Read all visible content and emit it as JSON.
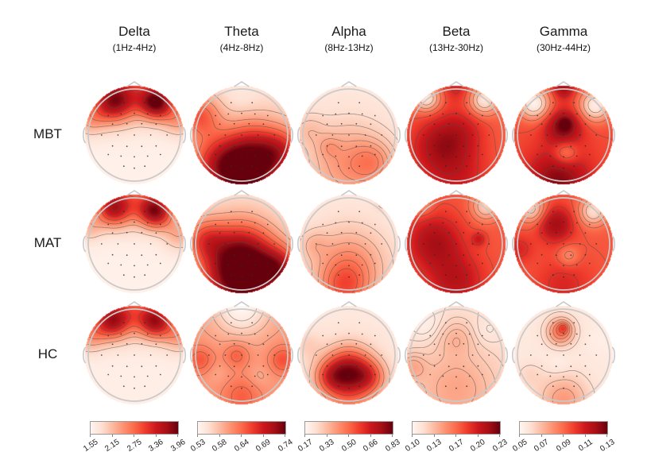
{
  "chart_data": {
    "type": "heatmap",
    "subtype": "eeg_topographic_map_grid",
    "colormap": "Reds",
    "colormap_colors": [
      "#fff5f0",
      "#fee0d2",
      "#fcbba1",
      "#fc9272",
      "#fb6a4a",
      "#ef3b2c",
      "#cb181d",
      "#a50f15",
      "#67000d"
    ],
    "head_outline_color": "#c9c9c9",
    "contour_color": "#4d4d4d",
    "rows": [
      {
        "label": "MBT"
      },
      {
        "label": "MAT"
      },
      {
        "label": "HC"
      }
    ],
    "bands": [
      {
        "label": "Delta",
        "range": "(1Hz-4Hz)",
        "colorbar_ticks": [
          "1.55",
          "2.15",
          "2.75",
          "3.36",
          "3.96"
        ],
        "vmin": 1.55,
        "vmax": 3.96
      },
      {
        "label": "Theta",
        "range": "(4Hz-8Hz)",
        "colorbar_ticks": [
          "0.53",
          "0.58",
          "0.64",
          "0.69",
          "0.74"
        ],
        "vmin": 0.53,
        "vmax": 0.74
      },
      {
        "label": "Alpha",
        "range": "(8Hz-13Hz)",
        "colorbar_ticks": [
          "0.17",
          "0.33",
          "0.50",
          "0.66",
          "0.83"
        ],
        "vmin": 0.17,
        "vmax": 0.83
      },
      {
        "label": "Beta",
        "range": "(13Hz-30Hz)",
        "colorbar_ticks": [
          "0.10",
          "0.13",
          "0.17",
          "0.20",
          "0.23"
        ],
        "vmin": 0.1,
        "vmax": 0.23
      },
      {
        "label": "Gamma",
        "range": "(30Hz-44Hz)",
        "colorbar_ticks": [
          "0.05",
          "0.07",
          "0.09",
          "0.11",
          "0.13"
        ],
        "vmin": 0.05,
        "vmax": 0.13
      }
    ],
    "maps": [
      {
        "group": "MBT",
        "band": "Delta",
        "pattern": "bilateral frontal maxima, posterior minimum",
        "field": {
          "base": 0.03,
          "blobs": [
            {
              "x": 0.28,
              "y": 0.16,
              "s": 0.15,
              "a": 0.72
            },
            {
              "x": 0.73,
              "y": 0.17,
              "s": 0.12,
              "a": 0.82
            },
            {
              "x": 0.5,
              "y": 0.02,
              "s": 0.22,
              "a": 0.4
            },
            {
              "x": 0.04,
              "y": 0.34,
              "s": 0.12,
              "a": 0.26
            },
            {
              "x": 0.96,
              "y": 0.34,
              "s": 0.12,
              "a": 0.3
            }
          ]
        }
      },
      {
        "group": "MBT",
        "band": "Theta",
        "pattern": "occipital maximum, light frontal midline",
        "field": {
          "base": 0.13,
          "blobs": [
            {
              "x": 0.55,
              "y": 0.9,
              "s": 0.22,
              "a": 0.85
            },
            {
              "x": 0.25,
              "y": 0.78,
              "s": 0.22,
              "a": 0.45
            },
            {
              "x": 0.9,
              "y": 0.68,
              "s": 0.18,
              "a": 0.5
            },
            {
              "x": 0.07,
              "y": 0.3,
              "s": 0.15,
              "a": 0.4
            },
            {
              "x": 0.6,
              "y": 0.55,
              "s": 0.2,
              "a": 0.28
            },
            {
              "x": 0.5,
              "y": 0.1,
              "s": 0.15,
              "a": -0.06
            }
          ]
        }
      },
      {
        "group": "MBT",
        "band": "Alpha",
        "pattern": "mild posterior increase, light frontal half",
        "field": {
          "base": 0.07,
          "blobs": [
            {
              "x": 0.5,
              "y": 0.8,
              "s": 0.3,
              "a": 0.3
            },
            {
              "x": 0.75,
              "y": 0.78,
              "s": 0.15,
              "a": 0.18
            },
            {
              "x": 0.3,
              "y": 0.62,
              "s": 0.08,
              "a": 0.1
            },
            {
              "x": 0.08,
              "y": 0.45,
              "s": 0.12,
              "a": 0.12
            }
          ]
        }
      },
      {
        "group": "MBT",
        "band": "Beta",
        "pattern": "broad central-posterior elevation, bilateral frontal pole minima",
        "field": {
          "base": 0.52,
          "blobs": [
            {
              "x": 0.2,
              "y": 0.13,
              "s": 0.09,
              "a": -0.44
            },
            {
              "x": 0.78,
              "y": 0.15,
              "s": 0.1,
              "a": -0.44
            },
            {
              "x": 0.3,
              "y": 0.6,
              "s": 0.2,
              "a": 0.25
            },
            {
              "x": 0.55,
              "y": 0.45,
              "s": 0.18,
              "a": 0.18
            },
            {
              "x": 0.5,
              "y": 0.92,
              "s": 0.25,
              "a": 0.22
            },
            {
              "x": 0.5,
              "y": 0.02,
              "s": 0.1,
              "a": 0.18
            }
          ]
        }
      },
      {
        "group": "MBT",
        "band": "Gamma",
        "pattern": "central and occipital maxima, bilateral frontal minima",
        "field": {
          "base": 0.58,
          "blobs": [
            {
              "x": 0.5,
              "y": 0.42,
              "s": 0.13,
              "a": 0.36
            },
            {
              "x": 0.52,
              "y": 0.38,
              "s": 0.05,
              "a": 0.15
            },
            {
              "x": 0.2,
              "y": 0.18,
              "s": 0.11,
              "a": -0.56
            },
            {
              "x": 0.82,
              "y": 0.2,
              "s": 0.11,
              "a": -0.53
            },
            {
              "x": 0.45,
              "y": 0.95,
              "s": 0.22,
              "a": 0.36
            },
            {
              "x": 0.52,
              "y": 0.68,
              "s": 0.09,
              "a": -0.27
            },
            {
              "x": 0.5,
              "y": 0.02,
              "s": 0.08,
              "a": 0.28
            }
          ]
        }
      },
      {
        "group": "MAT",
        "band": "Delta",
        "pattern": "bilateral frontal maxima, posterior minimum",
        "field": {
          "base": 0.03,
          "blobs": [
            {
              "x": 0.28,
              "y": 0.14,
              "s": 0.13,
              "a": 0.66
            },
            {
              "x": 0.72,
              "y": 0.17,
              "s": 0.12,
              "a": 0.78
            },
            {
              "x": 0.5,
              "y": 0.02,
              "s": 0.2,
              "a": 0.36
            },
            {
              "x": 0.96,
              "y": 0.4,
              "s": 0.12,
              "a": 0.26
            },
            {
              "x": 0.04,
              "y": 0.34,
              "s": 0.1,
              "a": 0.2
            }
          ]
        }
      },
      {
        "group": "MAT",
        "band": "Theta",
        "pattern": "strong parieto-occipital maximum, frontal minimum",
        "field": {
          "base": 0.1,
          "blobs": [
            {
              "x": 0.5,
              "y": 0.85,
              "s": 0.28,
              "a": 0.9
            },
            {
              "x": 0.5,
              "y": 0.55,
              "s": 0.25,
              "a": 0.4
            },
            {
              "x": 0.12,
              "y": 0.45,
              "s": 0.15,
              "a": 0.35
            },
            {
              "x": 0.9,
              "y": 0.75,
              "s": 0.15,
              "a": 0.45
            }
          ]
        }
      },
      {
        "group": "MAT",
        "band": "Alpha",
        "pattern": "posterior increase, light frontal half",
        "field": {
          "base": 0.07,
          "blobs": [
            {
              "x": 0.5,
              "y": 0.72,
              "s": 0.28,
              "a": 0.33
            },
            {
              "x": 0.45,
              "y": 0.97,
              "s": 0.18,
              "a": 0.3
            },
            {
              "x": 0.85,
              "y": 0.08,
              "s": 0.06,
              "a": 0.12
            },
            {
              "x": 0.14,
              "y": 0.5,
              "s": 0.1,
              "a": 0.12
            }
          ]
        }
      },
      {
        "group": "MAT",
        "band": "Beta",
        "pattern": "broad elevation, left-central maximum, right-frontal minimum",
        "field": {
          "base": 0.55,
          "blobs": [
            {
              "x": 0.28,
              "y": 0.48,
              "s": 0.2,
              "a": 0.3
            },
            {
              "x": 0.5,
              "y": 0.88,
              "s": 0.2,
              "a": 0.25
            },
            {
              "x": 0.8,
              "y": 0.12,
              "s": 0.1,
              "a": -0.36
            },
            {
              "x": 0.15,
              "y": 0.1,
              "s": 0.08,
              "a": -0.2
            },
            {
              "x": 0.73,
              "y": 0.45,
              "s": 0.05,
              "a": 0.18
            }
          ]
        }
      },
      {
        "group": "MAT",
        "band": "Gamma",
        "pattern": "left fronto-central maximum, bilateral frontal minima",
        "field": {
          "base": 0.55,
          "blobs": [
            {
              "x": 0.42,
              "y": 0.3,
              "s": 0.13,
              "a": 0.33
            },
            {
              "x": 0.18,
              "y": 0.15,
              "s": 0.1,
              "a": -0.38
            },
            {
              "x": 0.8,
              "y": 0.17,
              "s": 0.1,
              "a": -0.42
            },
            {
              "x": 0.55,
              "y": 0.62,
              "s": 0.08,
              "a": -0.18
            },
            {
              "x": 0.5,
              "y": 0.92,
              "s": 0.2,
              "a": 0.15
            },
            {
              "x": 0.05,
              "y": 0.55,
              "s": 0.1,
              "a": 0.15
            }
          ]
        }
      },
      {
        "group": "HC",
        "band": "Delta",
        "pattern": "bilateral frontal maxima, posterior minimum",
        "field": {
          "base": 0.04,
          "blobs": [
            {
              "x": 0.27,
              "y": 0.15,
              "s": 0.13,
              "a": 0.68
            },
            {
              "x": 0.72,
              "y": 0.16,
              "s": 0.12,
              "a": 0.68
            },
            {
              "x": 0.5,
              "y": 0.02,
              "s": 0.2,
              "a": 0.38
            },
            {
              "x": 0.04,
              "y": 0.3,
              "s": 0.12,
              "a": 0.3
            },
            {
              "x": 0.96,
              "y": 0.3,
              "s": 0.12,
              "a": 0.3
            }
          ]
        }
      },
      {
        "group": "HC",
        "band": "Theta",
        "pattern": "diffuse mid/posterior moderate values, frontal minimum",
        "field": {
          "base": 0.35,
          "blobs": [
            {
              "x": 0.5,
              "y": 0.0,
              "s": 0.2,
              "a": -0.36
            },
            {
              "x": 0.08,
              "y": 0.55,
              "s": 0.1,
              "a": 0.2
            },
            {
              "x": 0.45,
              "y": 0.5,
              "s": 0.09,
              "a": 0.18
            },
            {
              "x": 0.92,
              "y": 0.55,
              "s": 0.1,
              "a": 0.22
            },
            {
              "x": 0.5,
              "y": 0.92,
              "s": 0.14,
              "a": 0.18
            },
            {
              "x": 0.25,
              "y": 0.68,
              "s": 0.08,
              "a": -0.05
            },
            {
              "x": 0.68,
              "y": 0.72,
              "s": 0.08,
              "a": -0.06
            }
          ]
        }
      },
      {
        "group": "HC",
        "band": "Alpha",
        "pattern": "strong centro-parietal maximum",
        "field": {
          "base": 0.08,
          "blobs": [
            {
              "x": 0.5,
              "y": 0.66,
              "s": 0.17,
              "a": 0.72
            },
            {
              "x": 0.3,
              "y": 0.72,
              "s": 0.12,
              "a": 0.3
            },
            {
              "x": 0.72,
              "y": 0.72,
              "s": 0.12,
              "a": 0.3
            },
            {
              "x": 0.5,
              "y": 0.95,
              "s": 0.2,
              "a": 0.25
            },
            {
              "x": 0.08,
              "y": 0.4,
              "s": 0.1,
              "a": 0.1
            }
          ]
        }
      },
      {
        "group": "HC",
        "band": "Beta",
        "pattern": "low overall, mild central and posterior increase",
        "field": {
          "base": 0.12,
          "blobs": [
            {
              "x": 0.18,
              "y": 0.18,
              "s": 0.12,
              "a": -0.09
            },
            {
              "x": 0.82,
              "y": 0.25,
              "s": 0.1,
              "a": -0.06
            },
            {
              "x": 0.5,
              "y": 0.32,
              "s": 0.13,
              "a": 0.12
            },
            {
              "x": 0.5,
              "y": 0.85,
              "s": 0.3,
              "a": 0.2
            },
            {
              "x": 0.05,
              "y": 0.62,
              "s": 0.1,
              "a": 0.15
            }
          ]
        }
      },
      {
        "group": "HC",
        "band": "Gamma",
        "pattern": "fronto-central focal maximum, low elsewhere",
        "field": {
          "base": 0.07,
          "blobs": [
            {
              "x": 0.47,
              "y": 0.26,
              "s": 0.1,
              "a": 0.42
            },
            {
              "x": 0.5,
              "y": 0.22,
              "s": 0.04,
              "a": 0.2
            },
            {
              "x": 0.45,
              "y": 0.6,
              "s": 0.08,
              "a": -0.05
            },
            {
              "x": 0.5,
              "y": 0.95,
              "s": 0.18,
              "a": 0.28
            },
            {
              "x": 0.15,
              "y": 0.7,
              "s": 0.1,
              "a": 0.08
            },
            {
              "x": 0.9,
              "y": 0.35,
              "s": 0.1,
              "a": -0.03
            }
          ]
        }
      }
    ]
  }
}
